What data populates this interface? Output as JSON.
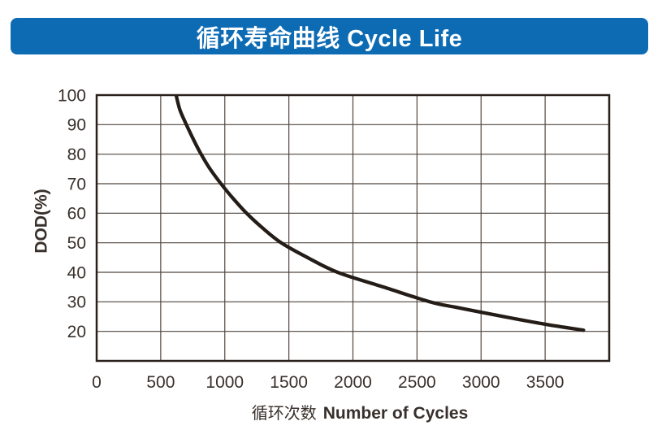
{
  "header": {
    "title": "循环寿命曲线 Cycle Life",
    "bg_color": "#0d6bb4",
    "text_color": "#ffffff"
  },
  "chart_data": {
    "type": "line",
    "title": "循环寿命曲线 Cycle Life",
    "xlabel_cn": "循环次数",
    "xlabel_en": "Number of Cycles",
    "ylabel": "DOD(%)",
    "xlim": [
      0,
      4000
    ],
    "ylim": [
      10,
      100
    ],
    "x_ticks": [
      0,
      500,
      1000,
      1500,
      2000,
      2500,
      3000,
      3500
    ],
    "y_ticks": [
      20,
      30,
      40,
      50,
      60,
      70,
      80,
      90,
      100
    ],
    "grid": true,
    "legend": false,
    "line_color": "#241c17",
    "grid_color": "#51463f",
    "axis_color": "#2a211d",
    "label_color": "#38302b",
    "series": [
      {
        "name": "cycle-life-curve",
        "points": [
          [
            620,
            100
          ],
          [
            650,
            95
          ],
          [
            700,
            90
          ],
          [
            755,
            85
          ],
          [
            815,
            80
          ],
          [
            885,
            75
          ],
          [
            970,
            70
          ],
          [
            1065,
            65
          ],
          [
            1170,
            60
          ],
          [
            1295,
            55
          ],
          [
            1440,
            50
          ],
          [
            1645,
            45
          ],
          [
            1880,
            40
          ],
          [
            2240,
            35
          ],
          [
            2600,
            30
          ],
          [
            2800,
            28.2
          ],
          [
            3000,
            26.5
          ],
          [
            3250,
            24.4
          ],
          [
            3500,
            22.4
          ],
          [
            3800,
            20.4
          ]
        ]
      }
    ]
  }
}
